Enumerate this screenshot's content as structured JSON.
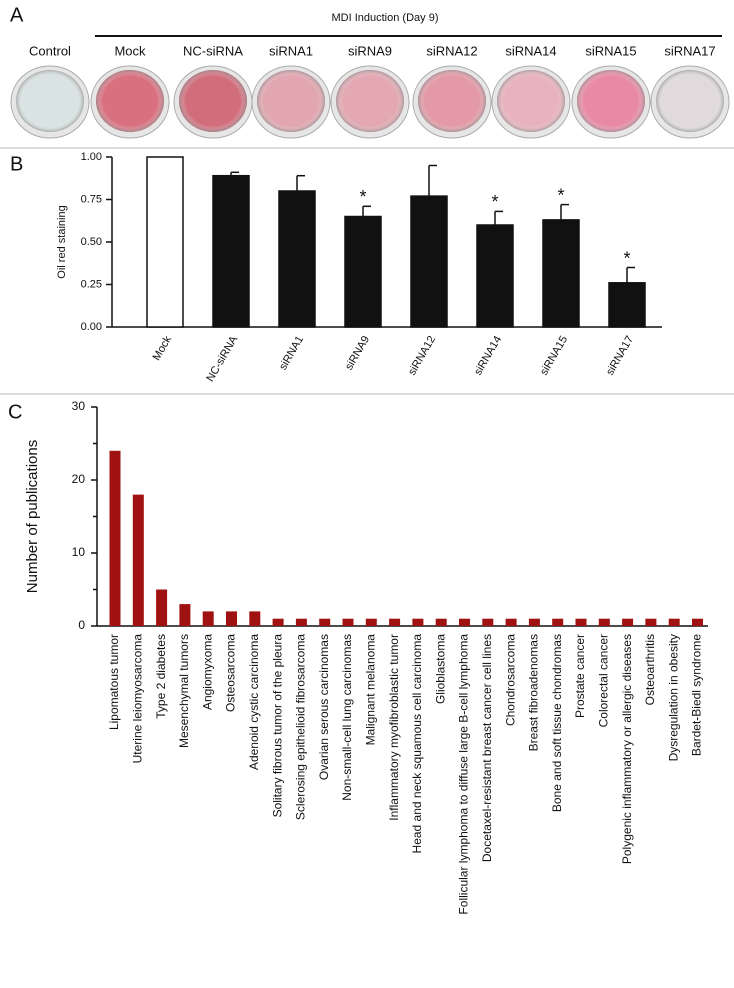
{
  "panel_labels": [
    "A",
    "B",
    "C"
  ],
  "panel_a": {
    "title": "MDI Induction (Day 9)",
    "wells": [
      {
        "label": "Control",
        "color": "#d9e3e2"
      },
      {
        "label": "Mock",
        "color": "#d9707f"
      },
      {
        "label": "NC-siRNA",
        "color": "#d26e7c"
      },
      {
        "label": "siRNA1",
        "color": "#e2a6b0"
      },
      {
        "label": "siRNA9",
        "color": "#e3a8b2"
      },
      {
        "label": "siRNA12",
        "color": "#e39aa6"
      },
      {
        "label": "siRNA14",
        "color": "#e8b3bd"
      },
      {
        "label": "siRNA15",
        "color": "#e88aa5"
      },
      {
        "label": "siRNA17",
        "color": "#e0dadd"
      }
    ]
  },
  "chart_data": [
    {
      "type": "bar",
      "ylabel": "Oil red staining",
      "categories": [
        "Mock",
        "NC-siRNA",
        "siRNA1",
        "siRNA9",
        "siRNA12",
        "siRNA14",
        "siRNA15",
        "siRNA17"
      ],
      "values": [
        1.0,
        0.89,
        0.8,
        0.65,
        0.77,
        0.6,
        0.63,
        0.26
      ],
      "errors": [
        null,
        0.02,
        0.09,
        0.06,
        0.18,
        0.08,
        0.09,
        0.09
      ],
      "markers": [
        null,
        null,
        null,
        "*",
        null,
        "*",
        "*",
        "*"
      ],
      "colors": [
        "#ffffff",
        "#111111",
        "#111111",
        "#111111",
        "#111111",
        "#111111",
        "#111111",
        "#111111"
      ],
      "ylim": [
        0,
        1
      ],
      "yticks": [
        {
          "value": 0,
          "label": "0.00"
        },
        {
          "value": 0.25,
          "label": "0.25"
        },
        {
          "value": 0.5,
          "label": "0.50"
        },
        {
          "value": 0.75,
          "label": "0.75"
        },
        {
          "value": 1,
          "label": "1.00"
        }
      ]
    },
    {
      "type": "bar",
      "ylabel": "Number of  publications",
      "categories": [
        "Lipomatous tumor",
        "Uterine leiomyosarcoma",
        "Type 2 diabetes",
        "Mesenchymal tumors",
        "Angiomyxoma",
        "Osteosarcoma",
        "Adenoid cystic carcinoma",
        "Solitary fibrous tumor of the pleura",
        "Sclerosing epithelioid fibrosarcoma",
        "Ovarian serous carcinomas",
        "Non-small-cell lung carcinomas",
        "Malignant melanoma",
        "Inflammatory myofibroblastic tumor",
        "Head and neck squamous cell carcinoma",
        "Glioblastoma",
        "Follicular lymphoma to diffuse large B-cell lymphoma",
        "Docetaxel-resistant breast cancer cell lines",
        "Chondrosarcoma",
        "Breast fibroadenomas",
        "Bone and soft tissue chondromas",
        "Prostate cancer",
        "Colorectal cancer",
        "Polygenic inflammatory or allergic diseases",
        "Osteoarthritis",
        "Dysregulation in obesity",
        "Bardet-Biedl syndrome"
      ],
      "values": [
        24,
        18,
        5,
        3,
        2,
        2,
        2,
        1,
        1,
        1,
        1,
        1,
        1,
        1,
        1,
        1,
        1,
        1,
        1,
        1,
        1,
        1,
        1,
        1,
        1,
        1
      ],
      "color": "#a01212",
      "label_colors": [
        "#d0312d",
        "#d0312d",
        "#d0312d",
        "#111111",
        "#111111",
        "#111111",
        "#111111",
        "#111111",
        "#111111",
        "#111111",
        "#111111",
        "#111111",
        "#111111",
        "#111111",
        "#111111",
        "#111111",
        "#111111",
        "#111111",
        "#111111",
        "#111111",
        "#111111",
        "#111111",
        "#111111",
        "#111111",
        "#111111",
        "#111111"
      ],
      "ylim": [
        0,
        30
      ],
      "yticks": [
        0,
        10,
        20,
        30
      ],
      "minor_yticks": [
        5,
        15,
        25
      ]
    }
  ]
}
